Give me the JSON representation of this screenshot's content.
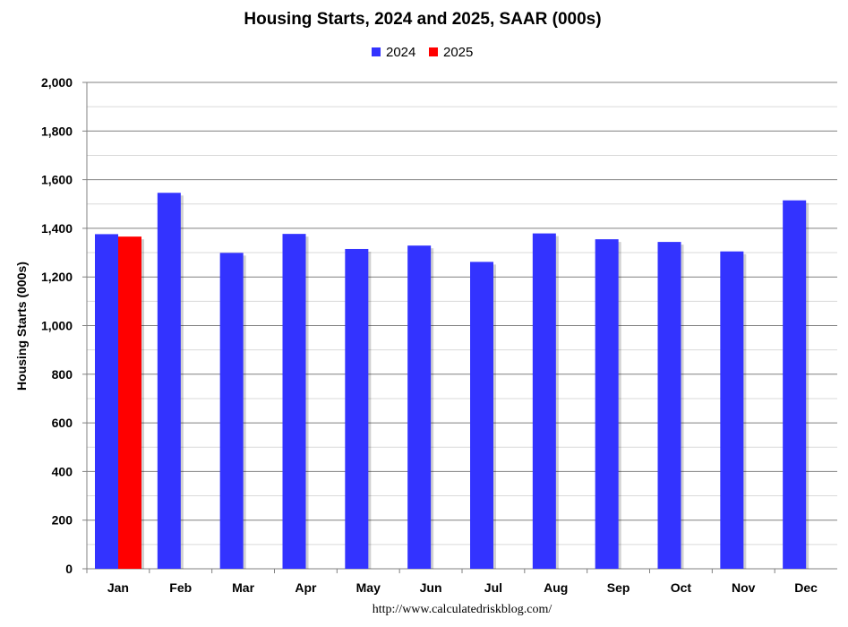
{
  "chart_data": {
    "type": "bar",
    "title": "Housing Starts,  2024 and 2025, SAAR (000s)",
    "ylabel": "Housing Starts (000s)",
    "xlabel": "",
    "ylim": [
      0,
      2000
    ],
    "yticks": [
      0,
      200,
      400,
      600,
      800,
      1000,
      1200,
      1400,
      1600,
      1800,
      2000
    ],
    "ytick_labels": [
      "0",
      "200",
      "400",
      "600",
      "800",
      "1,000",
      "1,200",
      "1,400",
      "1,600",
      "1,800",
      "2,000"
    ],
    "grid": true,
    "legend_position": "top-center",
    "categories": [
      "Jan",
      "Feb",
      "Mar",
      "Apr",
      "May",
      "Jun",
      "Jul",
      "Aug",
      "Sep",
      "Oct",
      "Nov",
      "Dec"
    ],
    "series": [
      {
        "name": "2024",
        "color": "#3333ff",
        "values": [
          1376,
          1546,
          1299,
          1377,
          1315,
          1329,
          1262,
          1379,
          1355,
          1344,
          1305,
          1515
        ]
      },
      {
        "name": "2025",
        "color": "#ff0000",
        "values": [
          1366,
          null,
          null,
          null,
          null,
          null,
          null,
          null,
          null,
          null,
          null,
          null
        ]
      }
    ],
    "source": "http://www.calculatedriskblog.com/"
  }
}
